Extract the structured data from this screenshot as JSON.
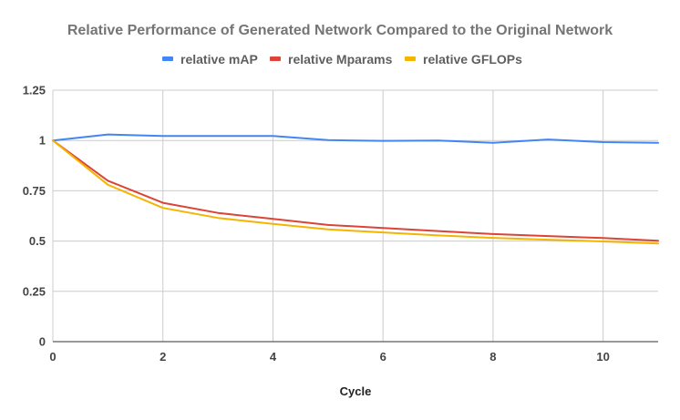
{
  "chart_data": {
    "type": "line",
    "title": "Relative Performance of Generated Network Compared to the Original Network",
    "xlabel": "Cycle",
    "ylabel": "",
    "xlim": [
      0,
      11
    ],
    "ylim": [
      0,
      1.25
    ],
    "x_ticks": [
      0,
      2,
      4,
      6,
      8,
      10
    ],
    "x_tick_labels": [
      "0",
      "2",
      "4",
      "6",
      "8",
      "10"
    ],
    "y_ticks": [
      0,
      0.25,
      0.5,
      0.75,
      1,
      1.25
    ],
    "y_tick_labels": [
      "0",
      "0.25",
      "0.5",
      "0.75",
      "1",
      "1.25"
    ],
    "grid": true,
    "legend_position": "top",
    "x": [
      0,
      1,
      2,
      3,
      4,
      5,
      6,
      7,
      8,
      9,
      10,
      11
    ],
    "series": [
      {
        "name": "relative mAP",
        "color": "#4285f4",
        "values": [
          1.0,
          1.03,
          1.022,
          1.022,
          1.022,
          1.002,
          0.998,
          1.0,
          0.988,
          1.005,
          0.992,
          0.988
        ]
      },
      {
        "name": "relative Mparams",
        "color": "#db4437",
        "values": [
          1.0,
          0.8,
          0.69,
          0.64,
          0.61,
          0.58,
          0.565,
          0.55,
          0.535,
          0.525,
          0.515,
          0.502
        ]
      },
      {
        "name": "relative GFLOPs",
        "color": "#f4b400",
        "values": [
          1.0,
          0.78,
          0.665,
          0.615,
          0.585,
          0.558,
          0.543,
          0.528,
          0.516,
          0.507,
          0.498,
          0.488
        ]
      }
    ]
  }
}
